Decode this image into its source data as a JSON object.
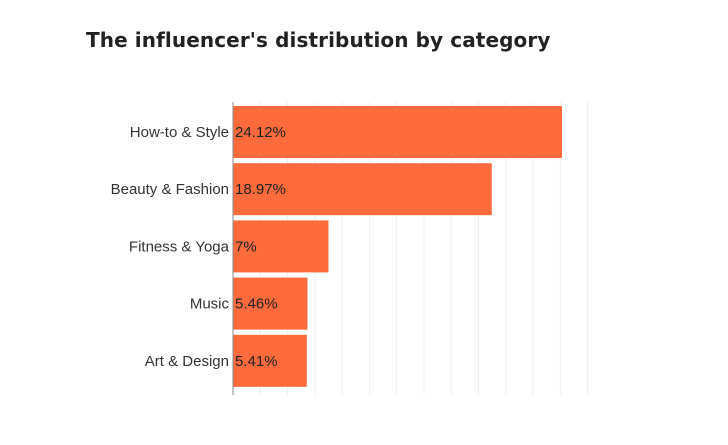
{
  "title": "The influencer's distribution by category",
  "chart_data": {
    "type": "bar",
    "orientation": "horizontal",
    "title": "The influencer's distribution by category",
    "xlabel": "",
    "ylabel": "",
    "categories": [
      "How-to & Style",
      "Beauty & Fashion",
      "Fitness & Yoga",
      "Music",
      "Art & Design"
    ],
    "values": [
      24.12,
      18.97,
      7,
      5.46,
      5.41
    ],
    "value_labels": [
      "24.12%",
      "18.97%",
      "7%",
      "5.46%",
      "5.41%"
    ],
    "unit": "%",
    "xlim": [
      0,
      26
    ],
    "grid": true,
    "legend": "none",
    "colors": {
      "bar": "#ff6b3d",
      "grid": "#eeeeee",
      "axis": "#888888"
    }
  }
}
